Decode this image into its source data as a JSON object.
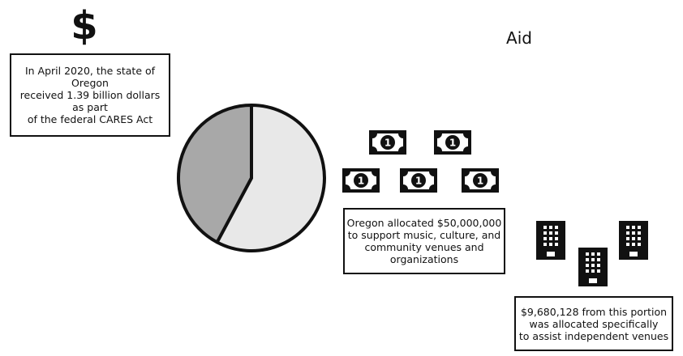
{
  "header": {
    "dollar_symbol": "$",
    "aid_title": "Aid"
  },
  "notes": {
    "cares": [
      "In April 2020, the state of",
      "Oregon",
      "received 1.39 billion dollars",
      "as part",
      "of the federal CARES Act"
    ],
    "oregon": [
      "Oregon allocated $50,000,000",
      "to support music, culture, and",
      "community venues and",
      "organizations"
    ],
    "venues": [
      "$9,680,128 from this portion",
      "was allocated specifically",
      "to assist independent venues"
    ]
  },
  "icons": {
    "bill_label": "1",
    "bill_count": 5,
    "building_count": 3
  },
  "colors": {
    "ink": "#111111",
    "pie_dark": "#a8a8a8",
    "pie_light": "#e8e8e8",
    "paper": "#ffffff"
  }
}
